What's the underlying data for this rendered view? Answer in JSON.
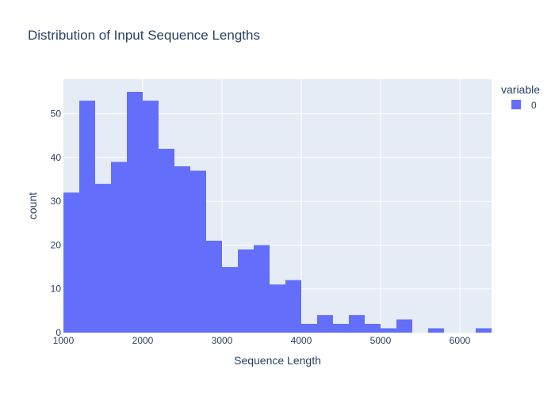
{
  "chart_data": {
    "type": "bar",
    "title": "Distribution of Input Sequence Lengths",
    "xlabel": "Sequence Length",
    "ylabel": "count",
    "bin_width": 200,
    "x": [
      1000,
      1200,
      1400,
      1600,
      1800,
      2000,
      2200,
      2400,
      2600,
      2800,
      3000,
      3200,
      3400,
      3600,
      3800,
      4000,
      4200,
      4400,
      4600,
      4800,
      5000,
      5200,
      5400,
      5600,
      5800,
      6000,
      6200
    ],
    "series": [
      {
        "name": "0",
        "color": "#636efa",
        "values": [
          32,
          53,
          34,
          39,
          55,
          53,
          42,
          38,
          37,
          21,
          15,
          19,
          20,
          11,
          12,
          2,
          4,
          2,
          4,
          2,
          1,
          3,
          0,
          1,
          0,
          0,
          1
        ]
      }
    ],
    "xlim": [
      1000,
      6400
    ],
    "ylim": [
      0,
      57.9
    ],
    "xticks": [
      1000,
      2000,
      3000,
      4000,
      5000,
      6000
    ],
    "yticks": [
      0,
      10,
      20,
      30,
      40,
      50
    ],
    "grid": true,
    "legend": {
      "title": "variable",
      "position": "right"
    },
    "colors": {
      "plot_background": "#e5ecf6",
      "grid": "#ffffff",
      "text": "#2a3f5f"
    }
  }
}
